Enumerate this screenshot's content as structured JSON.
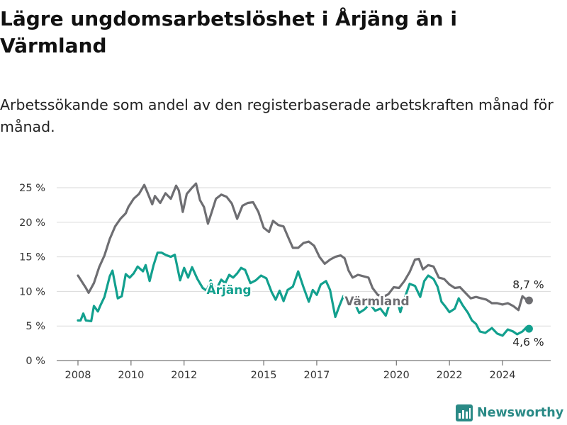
{
  "title": "Lägre ungdomsarbetslöshet i Årjäng än i Värmland",
  "subtitle": "Arbetssökande som andel av den registerbaserade arbetskraften månad för månad.",
  "brand": "Newsworthy",
  "colors": {
    "varmland": "#6e6e72",
    "arjang": "#12a08e",
    "grid": "#d9d9d9",
    "text": "#333333",
    "brand": "#2a8a86"
  },
  "chart_data": {
    "type": "line",
    "x_ticks": [
      "2008",
      "2010",
      "2012",
      "2015",
      "2017",
      "2020",
      "2022",
      "2024"
    ],
    "x_tick_values": [
      2008,
      2010,
      2012,
      2015,
      2017,
      2020,
      2022,
      2024
    ],
    "y_ticks": [
      "0 %",
      "5 %",
      "10 %",
      "15 %",
      "20 %",
      "25 %"
    ],
    "y_tick_values": [
      0,
      5,
      10,
      15,
      20,
      25
    ],
    "ylim": [
      0,
      25
    ],
    "grid": true,
    "series": [
      {
        "name": "Värmland",
        "color": "#6e6e72",
        "end_label": "8,7 %",
        "points": [
          [
            2008.0,
            12.3
          ],
          [
            2008.3,
            10.5
          ],
          [
            2008.4,
            9.8
          ],
          [
            2008.6,
            11.2
          ],
          [
            2008.8,
            13.5
          ],
          [
            2009.0,
            15.2
          ],
          [
            2009.2,
            17.6
          ],
          [
            2009.4,
            19.4
          ],
          [
            2009.6,
            20.5
          ],
          [
            2009.8,
            21.3
          ],
          [
            2009.9,
            22.2
          ],
          [
            2010.1,
            23.4
          ],
          [
            2010.3,
            24.1
          ],
          [
            2010.5,
            25.4
          ],
          [
            2010.6,
            24.5
          ],
          [
            2010.8,
            22.6
          ],
          [
            2010.9,
            23.8
          ],
          [
            2011.1,
            22.8
          ],
          [
            2011.3,
            24.2
          ],
          [
            2011.5,
            23.4
          ],
          [
            2011.7,
            25.3
          ],
          [
            2011.8,
            24.6
          ],
          [
            2011.95,
            21.5
          ],
          [
            2012.1,
            24.1
          ],
          [
            2012.3,
            25.0
          ],
          [
            2012.45,
            25.6
          ],
          [
            2012.6,
            23.2
          ],
          [
            2012.75,
            22.2
          ],
          [
            2012.9,
            19.8
          ],
          [
            2013.05,
            21.6
          ],
          [
            2013.2,
            23.4
          ],
          [
            2013.4,
            24.0
          ],
          [
            2013.6,
            23.7
          ],
          [
            2013.8,
            22.7
          ],
          [
            2014.0,
            20.5
          ],
          [
            2014.2,
            22.4
          ],
          [
            2014.4,
            22.8
          ],
          [
            2014.6,
            22.9
          ],
          [
            2014.8,
            21.5
          ],
          [
            2015.0,
            19.2
          ],
          [
            2015.2,
            18.6
          ],
          [
            2015.35,
            20.2
          ],
          [
            2015.55,
            19.6
          ],
          [
            2015.75,
            19.4
          ],
          [
            2015.95,
            17.6
          ],
          [
            2016.1,
            16.3
          ],
          [
            2016.3,
            16.3
          ],
          [
            2016.5,
            17.0
          ],
          [
            2016.7,
            17.2
          ],
          [
            2016.9,
            16.6
          ],
          [
            2017.1,
            15.0
          ],
          [
            2017.3,
            14.0
          ],
          [
            2017.5,
            14.6
          ],
          [
            2017.7,
            15.0
          ],
          [
            2017.9,
            15.2
          ],
          [
            2018.05,
            14.8
          ],
          [
            2018.2,
            13.0
          ],
          [
            2018.35,
            12.0
          ],
          [
            2018.55,
            12.4
          ],
          [
            2018.75,
            12.2
          ],
          [
            2018.95,
            12.0
          ],
          [
            2019.1,
            10.5
          ],
          [
            2019.3,
            9.5
          ],
          [
            2019.5,
            9.2
          ],
          [
            2019.7,
            9.6
          ],
          [
            2019.9,
            10.6
          ],
          [
            2020.1,
            10.5
          ],
          [
            2020.3,
            11.5
          ],
          [
            2020.5,
            12.8
          ],
          [
            2020.7,
            14.6
          ],
          [
            2020.85,
            14.7
          ],
          [
            2021.0,
            13.2
          ],
          [
            2021.2,
            13.8
          ],
          [
            2021.4,
            13.6
          ],
          [
            2021.6,
            12.0
          ],
          [
            2021.8,
            11.8
          ],
          [
            2022.0,
            11.0
          ],
          [
            2022.2,
            10.5
          ],
          [
            2022.4,
            10.6
          ],
          [
            2022.6,
            9.8
          ],
          [
            2022.8,
            9.0
          ],
          [
            2023.0,
            9.2
          ],
          [
            2023.2,
            9.0
          ],
          [
            2023.4,
            8.8
          ],
          [
            2023.6,
            8.3
          ],
          [
            2023.8,
            8.3
          ],
          [
            2024.0,
            8.1
          ],
          [
            2024.2,
            8.3
          ],
          [
            2024.4,
            7.9
          ],
          [
            2024.6,
            7.3
          ],
          [
            2024.75,
            9.3
          ],
          [
            2024.9,
            8.8
          ],
          [
            2025.0,
            8.7
          ]
        ]
      },
      {
        "name": "Årjäng",
        "color": "#12a08e",
        "end_label": "4,6 %",
        "points": [
          [
            2008.0,
            5.8
          ],
          [
            2008.1,
            5.8
          ],
          [
            2008.2,
            6.8
          ],
          [
            2008.3,
            5.8
          ],
          [
            2008.5,
            5.7
          ],
          [
            2008.6,
            7.9
          ],
          [
            2008.75,
            7.1
          ],
          [
            2008.85,
            8.0
          ],
          [
            2009.0,
            9.2
          ],
          [
            2009.2,
            12.2
          ],
          [
            2009.3,
            13.0
          ],
          [
            2009.5,
            9.0
          ],
          [
            2009.65,
            9.3
          ],
          [
            2009.8,
            12.5
          ],
          [
            2009.95,
            12.0
          ],
          [
            2010.1,
            12.6
          ],
          [
            2010.25,
            13.6
          ],
          [
            2010.45,
            12.9
          ],
          [
            2010.55,
            13.8
          ],
          [
            2010.7,
            11.5
          ],
          [
            2010.85,
            13.8
          ],
          [
            2011.0,
            15.6
          ],
          [
            2011.15,
            15.6
          ],
          [
            2011.3,
            15.3
          ],
          [
            2011.5,
            15.0
          ],
          [
            2011.65,
            15.3
          ],
          [
            2011.85,
            11.6
          ],
          [
            2012.0,
            13.4
          ],
          [
            2012.15,
            12.0
          ],
          [
            2012.3,
            13.5
          ],
          [
            2012.5,
            11.8
          ],
          [
            2012.7,
            10.5
          ],
          [
            2012.85,
            10.1
          ],
          [
            2013.0,
            11.6
          ],
          [
            2013.2,
            10.2
          ],
          [
            2013.4,
            11.7
          ],
          [
            2013.55,
            11.2
          ],
          [
            2013.7,
            12.4
          ],
          [
            2013.85,
            12.0
          ],
          [
            2014.0,
            12.6
          ],
          [
            2014.15,
            13.4
          ],
          [
            2014.3,
            13.1
          ],
          [
            2014.5,
            11.2
          ],
          [
            2014.7,
            11.6
          ],
          [
            2014.9,
            12.3
          ],
          [
            2015.1,
            11.9
          ],
          [
            2015.3,
            9.9
          ],
          [
            2015.45,
            8.8
          ],
          [
            2015.6,
            10.1
          ],
          [
            2015.75,
            8.6
          ],
          [
            2015.9,
            10.2
          ],
          [
            2016.1,
            10.7
          ],
          [
            2016.3,
            12.9
          ],
          [
            2016.5,
            10.6
          ],
          [
            2016.7,
            8.5
          ],
          [
            2016.85,
            10.2
          ],
          [
            2017.0,
            9.5
          ],
          [
            2017.15,
            11.0
          ],
          [
            2017.35,
            11.5
          ],
          [
            2017.5,
            10.2
          ],
          [
            2017.7,
            6.3
          ],
          [
            2017.85,
            7.9
          ],
          [
            2018.0,
            9.3
          ],
          [
            2018.2,
            8.0
          ],
          [
            2018.4,
            8.5
          ],
          [
            2018.6,
            6.9
          ],
          [
            2018.8,
            7.4
          ],
          [
            2019.0,
            8.2
          ],
          [
            2019.2,
            7.2
          ],
          [
            2019.4,
            7.5
          ],
          [
            2019.6,
            6.5
          ],
          [
            2019.8,
            8.9
          ],
          [
            2020.0,
            9.0
          ],
          [
            2020.15,
            7.0
          ],
          [
            2020.3,
            8.9
          ],
          [
            2020.5,
            11.1
          ],
          [
            2020.7,
            10.8
          ],
          [
            2020.9,
            9.2
          ],
          [
            2021.05,
            11.5
          ],
          [
            2021.2,
            12.3
          ],
          [
            2021.4,
            11.8
          ],
          [
            2021.55,
            10.7
          ],
          [
            2021.7,
            8.5
          ],
          [
            2021.85,
            7.8
          ],
          [
            2022.0,
            7.0
          ],
          [
            2022.2,
            7.5
          ],
          [
            2022.35,
            9.0
          ],
          [
            2022.5,
            8.0
          ],
          [
            2022.7,
            6.9
          ],
          [
            2022.85,
            5.8
          ],
          [
            2023.0,
            5.3
          ],
          [
            2023.15,
            4.2
          ],
          [
            2023.35,
            4.0
          ],
          [
            2023.6,
            4.7
          ],
          [
            2023.8,
            3.9
          ],
          [
            2024.0,
            3.6
          ],
          [
            2024.2,
            4.5
          ],
          [
            2024.4,
            4.2
          ],
          [
            2024.55,
            3.8
          ],
          [
            2024.75,
            4.2
          ],
          [
            2024.9,
            4.8
          ],
          [
            2025.0,
            4.6
          ]
        ]
      }
    ]
  }
}
